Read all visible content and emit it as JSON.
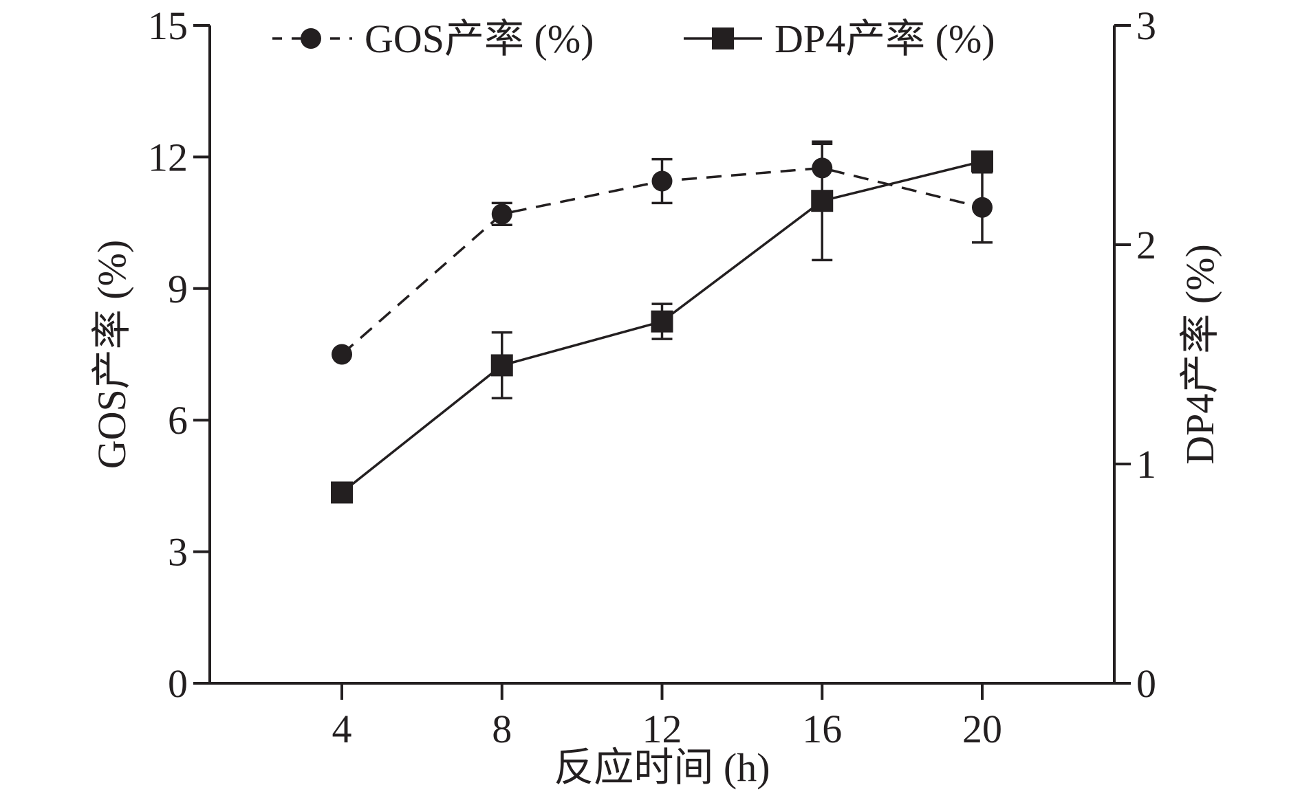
{
  "chart_data": {
    "type": "line",
    "title": "",
    "x": [
      4,
      8,
      12,
      16,
      20
    ],
    "xlabel": "反应时间 (h)",
    "xlim": [
      0.7,
      23.3
    ],
    "xticks": [
      4,
      8,
      12,
      16,
      20
    ],
    "ylabel_left": "GOS产率 (%)",
    "ylim_left": [
      0,
      15
    ],
    "yticks_left": [
      0,
      3,
      6,
      9,
      12,
      15
    ],
    "ylabel_right": "DP4产率 (%)",
    "ylim_right": [
      0,
      3
    ],
    "yticks_right": [
      0,
      1,
      2,
      3
    ],
    "grid": false,
    "legend_position": "top",
    "series": [
      {
        "name": "GOS产率 (%)",
        "axis": "left",
        "marker": "circle",
        "line_style": "dashed",
        "values": [
          7.5,
          10.7,
          11.45,
          11.75,
          10.85
        ],
        "errors": [
          0.0,
          0.25,
          0.5,
          0.55,
          0.8
        ]
      },
      {
        "name": "DP4产率 (%)",
        "axis": "right",
        "marker": "square",
        "line_style": "solid",
        "values": [
          0.87,
          1.45,
          1.65,
          2.2,
          2.38
        ],
        "errors": [
          0.0,
          0.15,
          0.08,
          0.27,
          0.0
        ]
      }
    ]
  },
  "colors": {
    "ink": "#231f20",
    "background": "#ffffff"
  }
}
